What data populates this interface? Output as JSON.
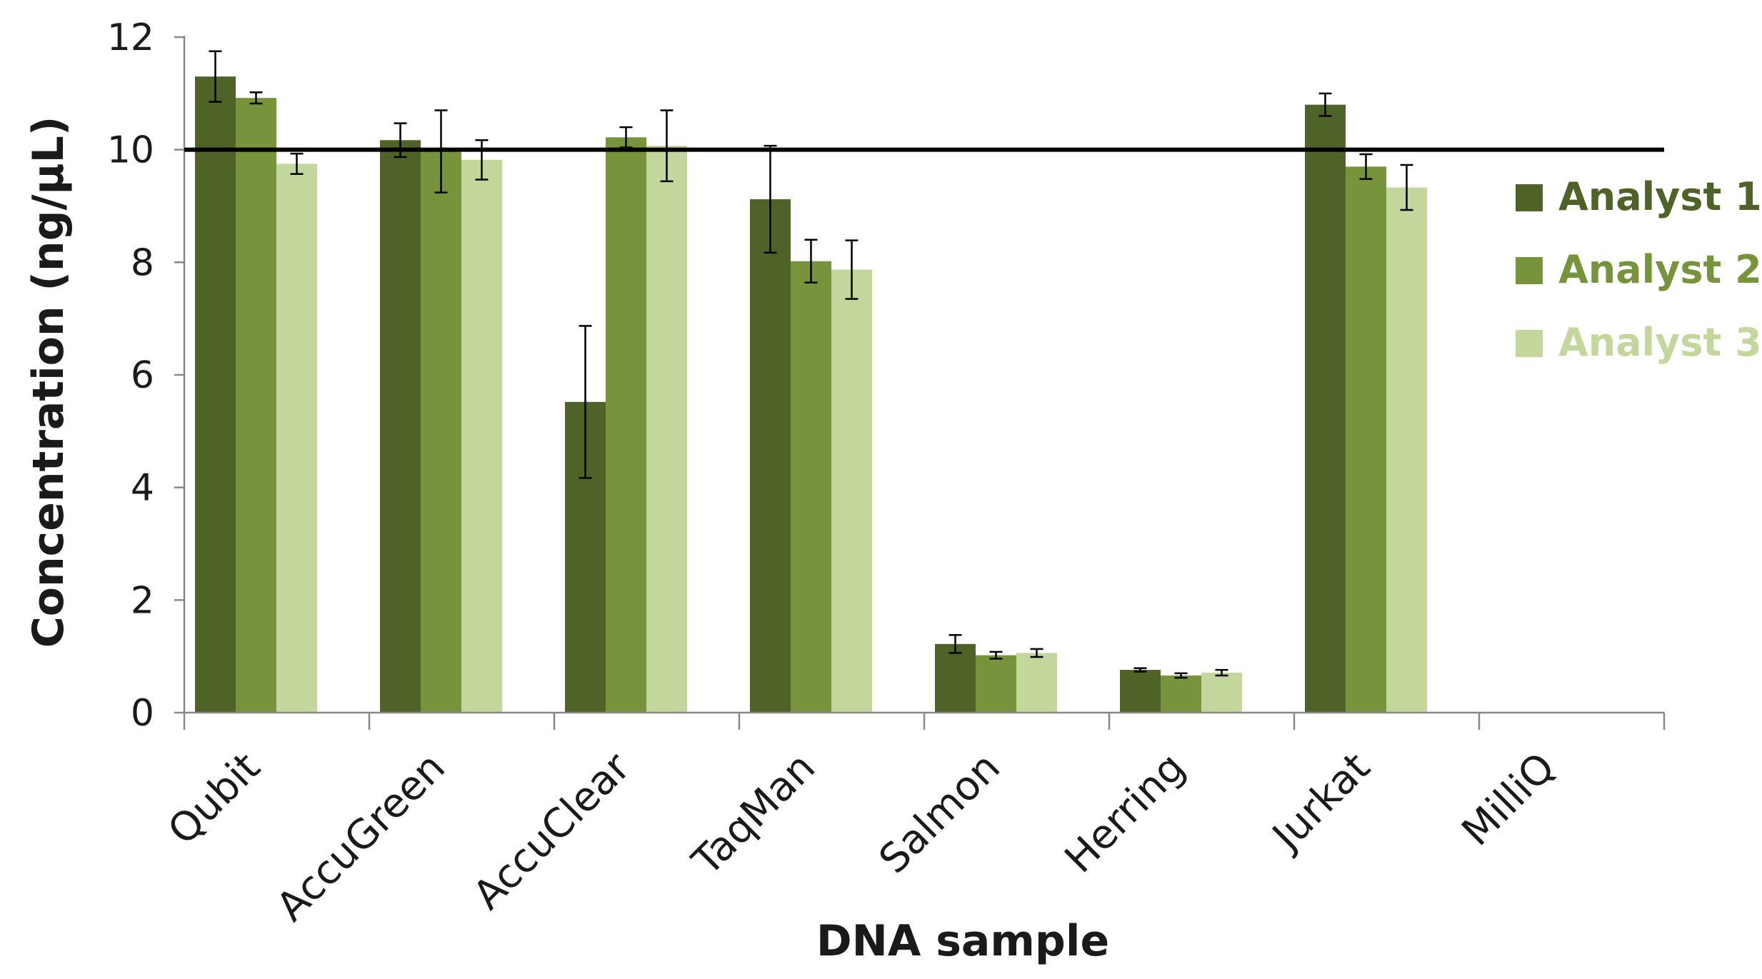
{
  "chart_data": {
    "type": "bar",
    "title": "",
    "xlabel": "DNA sample",
    "ylabel": "Concentration (ng/µL)",
    "ylim": [
      0,
      12
    ],
    "yticks": [
      "0",
      "2",
      "4",
      "6",
      "8",
      "10",
      "12"
    ],
    "ytick_values": [
      0,
      2,
      4,
      6,
      8,
      10,
      12
    ],
    "reference_line": 10,
    "grid": false,
    "legend_position": "right",
    "categories": [
      "Qubit",
      "AccuGreen",
      "AccuClear",
      "TaqMan",
      "Salmon",
      "Herring",
      "Jurkat",
      "MilliQ"
    ],
    "series": [
      {
        "name": "Analyst 1",
        "color": "#4f6228",
        "values": [
          11.3,
          10.17,
          5.52,
          9.12,
          1.22,
          0.76,
          10.8,
          null
        ],
        "errors": [
          0.45,
          0.3,
          1.35,
          0.95,
          0.16,
          0.03,
          0.2,
          null
        ]
      },
      {
        "name": "Analyst 2",
        "color": "#77933c",
        "values": [
          10.92,
          9.97,
          10.22,
          8.02,
          1.02,
          0.66,
          9.7,
          null
        ],
        "errors": [
          0.1,
          0.73,
          0.18,
          0.38,
          0.06,
          0.04,
          0.22,
          null
        ]
      },
      {
        "name": "Analyst 3",
        "color": "#c3d69b",
        "values": [
          9.75,
          9.82,
          10.07,
          7.87,
          1.06,
          0.71,
          9.33,
          null
        ],
        "errors": [
          0.18,
          0.35,
          0.63,
          0.52,
          0.07,
          0.05,
          0.4,
          null
        ]
      }
    ]
  }
}
